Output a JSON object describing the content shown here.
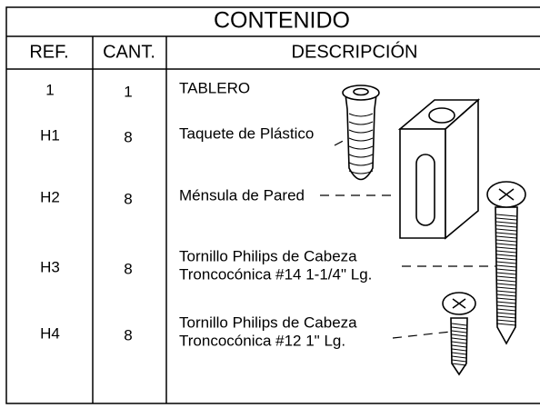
{
  "header": {
    "title": "CONTENIDO"
  },
  "table": {
    "columns": [
      "REF.",
      "CANT.",
      "DESCRIPCIÓN"
    ],
    "rows": [
      {
        "ref": "1",
        "qty": "1",
        "description": [
          "TABLERO"
        ]
      },
      {
        "ref": "H1",
        "qty": "8",
        "description": [
          "Taquete de Plástico"
        ]
      },
      {
        "ref": "H2",
        "qty": "8",
        "description": [
          "Ménsula de Pared"
        ]
      },
      {
        "ref": "H3",
        "qty": "8",
        "description": [
          "Tornillo Philips de Cabeza",
          "Troncocónica #14 1-1/4\" Lg."
        ]
      },
      {
        "ref": "H4",
        "qty": "8",
        "description": [
          "Tornillo Philips de Cabeza",
          "Troncocónica #12 1\" Lg."
        ]
      }
    ]
  }
}
